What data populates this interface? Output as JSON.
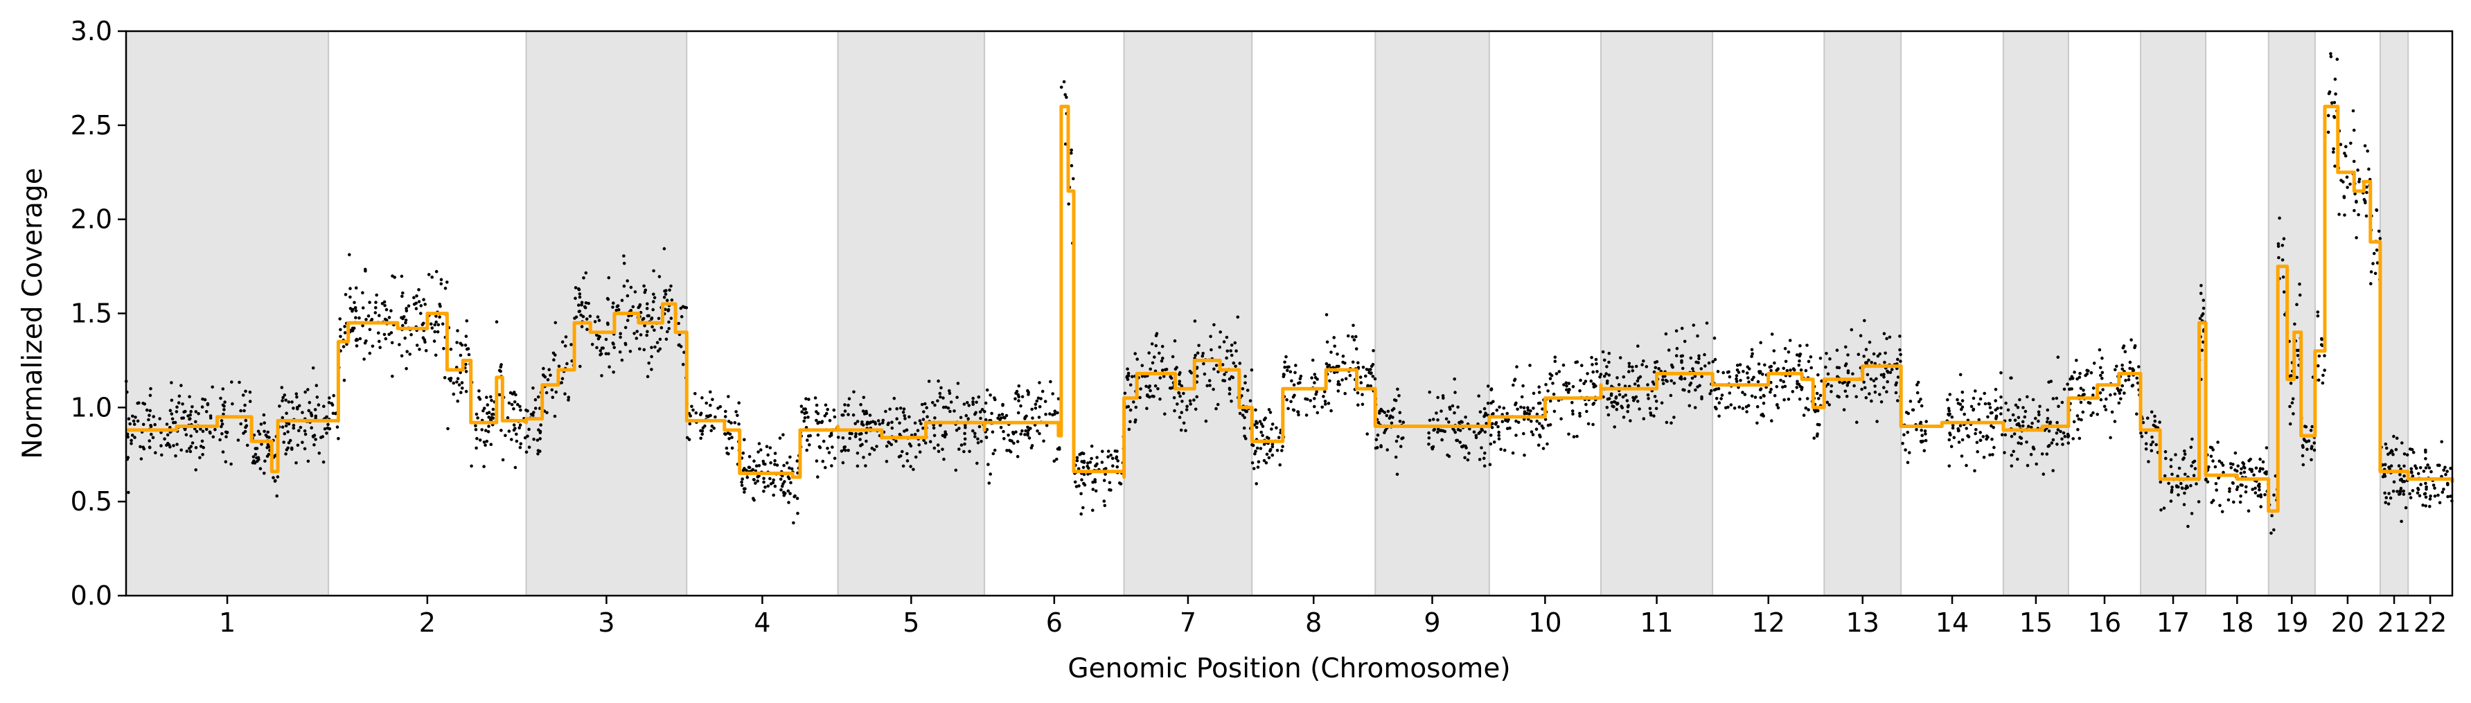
{
  "chart_data": {
    "type": "scatter",
    "title": "",
    "xlabel": "Genomic Position (Chromosome)",
    "ylabel": "Normalized Coverage",
    "ylim": [
      0.0,
      3.0
    ],
    "yticks": [
      "0.0",
      "0.5",
      "1.0",
      "1.5",
      "2.0",
      "2.5",
      "3.0"
    ],
    "shaded_alternate_chromosomes": true,
    "grid": false,
    "legend": "none",
    "colors": {
      "points": "#000000",
      "segment_line": "#FFA500",
      "band": "#E5E5E5",
      "band_edge": "#C8C8C8"
    },
    "series": [
      {
        "kind": "scatter",
        "description_key": "points"
      },
      {
        "kind": "line",
        "description_key": "segment_line"
      }
    ],
    "chromosomes": [
      {
        "label": "1",
        "start": 0.0,
        "end": 0.087,
        "shaded": true,
        "segments": [
          [
            0.0,
            0.88
          ],
          [
            0.25,
            0.9
          ],
          [
            0.45,
            0.95
          ],
          [
            0.62,
            0.82
          ],
          [
            0.72,
            0.66
          ],
          [
            0.75,
            0.93
          ],
          [
            1.0,
            0.93
          ]
        ]
      },
      {
        "label": "2",
        "start": 0.087,
        "end": 0.172,
        "shaded": false,
        "segments": [
          [
            0.0,
            0.93
          ],
          [
            0.05,
            1.35
          ],
          [
            0.1,
            1.45
          ],
          [
            0.35,
            1.42
          ],
          [
            0.5,
            1.5
          ],
          [
            0.6,
            1.2
          ],
          [
            0.68,
            1.25
          ],
          [
            0.72,
            0.92
          ],
          [
            0.8,
            0.92
          ],
          [
            0.85,
            1.16
          ],
          [
            0.88,
            0.93
          ],
          [
            1.0,
            0.92
          ]
        ]
      },
      {
        "label": "3",
        "start": 0.172,
        "end": 0.241,
        "shaded": true,
        "segments": [
          [
            0.0,
            0.94
          ],
          [
            0.1,
            1.12
          ],
          [
            0.2,
            1.2
          ],
          [
            0.3,
            1.45
          ],
          [
            0.4,
            1.4
          ],
          [
            0.55,
            1.5
          ],
          [
            0.7,
            1.45
          ],
          [
            0.85,
            1.55
          ],
          [
            0.93,
            1.4
          ],
          [
            1.0,
            1.4
          ]
        ]
      },
      {
        "label": "4",
        "start": 0.241,
        "end": 0.306,
        "shaded": false,
        "segments": [
          [
            0.0,
            0.93
          ],
          [
            0.25,
            0.88
          ],
          [
            0.35,
            0.65
          ],
          [
            0.7,
            0.63
          ],
          [
            0.75,
            0.88
          ],
          [
            1.0,
            0.9
          ]
        ]
      },
      {
        "label": "5",
        "start": 0.306,
        "end": 0.369,
        "shaded": true,
        "segments": [
          [
            0.0,
            0.88
          ],
          [
            0.3,
            0.84
          ],
          [
            0.6,
            0.92
          ],
          [
            1.0,
            0.88
          ]
        ]
      },
      {
        "label": "6",
        "start": 0.369,
        "end": 0.429,
        "shaded": false,
        "segments": [
          [
            0.0,
            0.92
          ],
          [
            0.4,
            0.92
          ],
          [
            0.53,
            0.85
          ],
          [
            0.55,
            2.6
          ],
          [
            0.6,
            2.15
          ],
          [
            0.64,
            0.66
          ],
          [
            1.0,
            0.63
          ]
        ]
      },
      {
        "label": "7",
        "start": 0.429,
        "end": 0.484,
        "shaded": true,
        "segments": [
          [
            0.0,
            1.05
          ],
          [
            0.1,
            1.18
          ],
          [
            0.4,
            1.1
          ],
          [
            0.55,
            1.25
          ],
          [
            0.75,
            1.2
          ],
          [
            0.9,
            1.0
          ],
          [
            1.0,
            0.9
          ]
        ]
      },
      {
        "label": "8",
        "start": 0.484,
        "end": 0.537,
        "shaded": false,
        "segments": [
          [
            0.0,
            0.82
          ],
          [
            0.25,
            1.1
          ],
          [
            0.6,
            1.2
          ],
          [
            0.85,
            1.1
          ],
          [
            1.0,
            0.9
          ]
        ]
      },
      {
        "label": "9",
        "start": 0.537,
        "end": 0.586,
        "shaded": true,
        "segments": [
          [
            0.0,
            0.9
          ],
          [
            1.0,
            0.9
          ]
        ]
      },
      {
        "label": "10",
        "start": 0.586,
        "end": 0.634,
        "shaded": false,
        "segments": [
          [
            0.0,
            0.95
          ],
          [
            0.5,
            1.05
          ],
          [
            1.0,
            1.12
          ]
        ]
      },
      {
        "label": "11",
        "start": 0.634,
        "end": 0.682,
        "shaded": true,
        "segments": [
          [
            0.0,
            1.1
          ],
          [
            0.5,
            1.18
          ],
          [
            1.0,
            1.15
          ]
        ]
      },
      {
        "label": "12",
        "start": 0.682,
        "end": 0.73,
        "shaded": false,
        "segments": [
          [
            0.0,
            1.12
          ],
          [
            0.5,
            1.18
          ],
          [
            0.8,
            1.15
          ],
          [
            0.9,
            1.0
          ],
          [
            1.0,
            1.0
          ]
        ]
      },
      {
        "label": "13",
        "start": 0.73,
        "end": 0.763,
        "shaded": true,
        "segments": [
          [
            0.0,
            1.15
          ],
          [
            0.5,
            1.22
          ],
          [
            1.0,
            1.15
          ]
        ]
      },
      {
        "label": "14",
        "start": 0.763,
        "end": 0.807,
        "shaded": false,
        "segments": [
          [
            0.0,
            0.9
          ],
          [
            0.4,
            0.92
          ],
          [
            1.0,
            0.9
          ]
        ]
      },
      {
        "label": "15",
        "start": 0.807,
        "end": 0.835,
        "shaded": true,
        "segments": [
          [
            0.0,
            0.88
          ],
          [
            0.6,
            0.9
          ],
          [
            1.0,
            0.92
          ]
        ]
      },
      {
        "label": "16",
        "start": 0.835,
        "end": 0.866,
        "shaded": false,
        "segments": [
          [
            0.0,
            1.05
          ],
          [
            0.4,
            1.12
          ],
          [
            0.7,
            1.18
          ],
          [
            1.0,
            1.05
          ]
        ]
      },
      {
        "label": "17",
        "start": 0.866,
        "end": 0.894,
        "shaded": true,
        "segments": [
          [
            0.0,
            0.88
          ],
          [
            0.3,
            0.62
          ],
          [
            0.8,
            0.62
          ],
          [
            0.9,
            1.45
          ],
          [
            1.0,
            0.64
          ]
        ]
      },
      {
        "label": "18",
        "start": 0.894,
        "end": 0.921,
        "shaded": false,
        "segments": [
          [
            0.0,
            0.64
          ],
          [
            0.5,
            0.62
          ],
          [
            1.0,
            0.62
          ]
        ]
      },
      {
        "label": "19",
        "start": 0.921,
        "end": 0.941,
        "shaded": true,
        "segments": [
          [
            0.0,
            0.45
          ],
          [
            0.2,
            1.75
          ],
          [
            0.4,
            1.15
          ],
          [
            0.55,
            1.4
          ],
          [
            0.7,
            0.85
          ],
          [
            1.0,
            0.88
          ]
        ]
      },
      {
        "label": "20",
        "start": 0.941,
        "end": 0.969,
        "shaded": false,
        "segments": [
          [
            0.0,
            1.3
          ],
          [
            0.15,
            2.6
          ],
          [
            0.35,
            2.25
          ],
          [
            0.6,
            2.15
          ],
          [
            0.75,
            2.2
          ],
          [
            0.85,
            1.88
          ],
          [
            1.0,
            1.88
          ]
        ]
      },
      {
        "label": "21",
        "start": 0.969,
        "end": 0.981,
        "shaded": true,
        "segments": [
          [
            0.0,
            0.66
          ],
          [
            1.0,
            0.64
          ]
        ]
      },
      {
        "label": "22",
        "start": 0.981,
        "end": 1.0,
        "shaded": false,
        "segments": [
          [
            0.0,
            0.62
          ],
          [
            1.0,
            0.6
          ]
        ]
      }
    ]
  }
}
